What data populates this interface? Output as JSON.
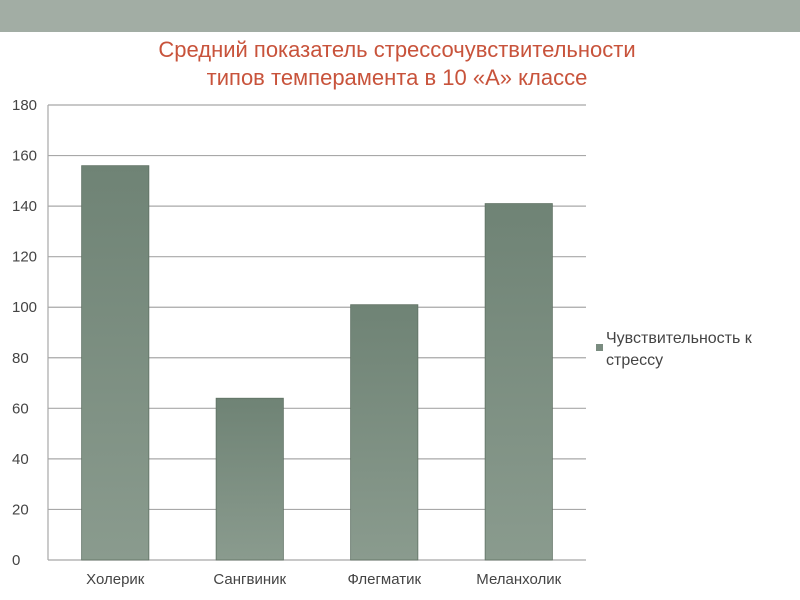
{
  "slide": {
    "title_line1": "Средний показатель стрессочувствительности",
    "title_line2": "типов темперамента в 10 «А» классе"
  },
  "colors": {
    "band": "#a2ada4",
    "title": "#c8533b",
    "bar_light": "#8a9b8e",
    "bar_dark": "#6f8375",
    "grid": "#a8a8a8",
    "text": "#444444"
  },
  "chart_data": {
    "type": "bar",
    "title": "Средний показатель стрессочувствительности типов темперамента в 10 «А» классе",
    "categories": [
      "Холерик",
      "Сангвиник",
      "Флегматик",
      "Меланхолик"
    ],
    "series": [
      {
        "name": "Чувствительность к стрессу",
        "values": [
          156,
          64,
          101,
          141
        ]
      }
    ],
    "ylim": [
      0,
      180
    ],
    "yticks": [
      0,
      20,
      40,
      60,
      80,
      100,
      120,
      140,
      160,
      180
    ],
    "grid": true,
    "legend_position": "right"
  }
}
